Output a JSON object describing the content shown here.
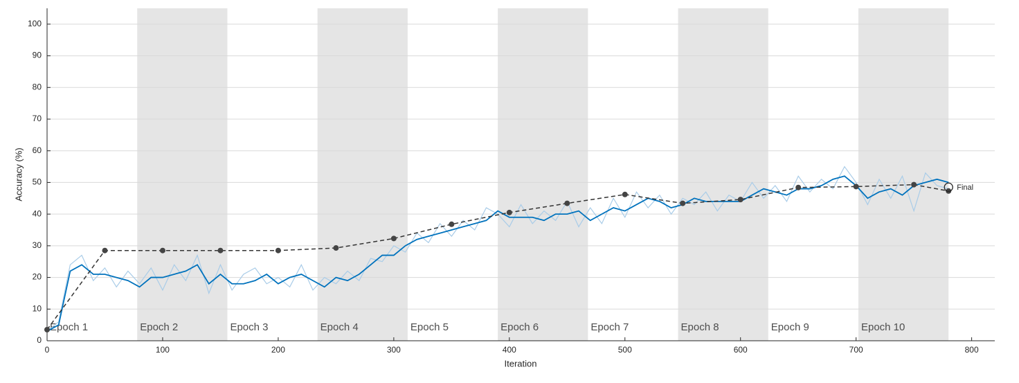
{
  "chart_data": {
    "type": "line",
    "xlabel": "Iteration",
    "ylabel": "Accuracy (%)",
    "xlim": [
      0,
      820
    ],
    "ylim": [
      0,
      105
    ],
    "xticks": [
      0,
      100,
      200,
      300,
      400,
      500,
      600,
      700,
      800
    ],
    "yticks": [
      0,
      10,
      20,
      30,
      40,
      50,
      60,
      70,
      80,
      90,
      100
    ],
    "grid": true,
    "epochs": [
      {
        "label": "Epoch 1",
        "start": 0,
        "end": 78
      },
      {
        "label": "Epoch 2",
        "start": 78,
        "end": 156
      },
      {
        "label": "Epoch 3",
        "start": 156,
        "end": 234
      },
      {
        "label": "Epoch 4",
        "start": 234,
        "end": 312
      },
      {
        "label": "Epoch 5",
        "start": 312,
        "end": 390
      },
      {
        "label": "Epoch 6",
        "start": 390,
        "end": 468
      },
      {
        "label": "Epoch 7",
        "start": 468,
        "end": 546
      },
      {
        "label": "Epoch 8",
        "start": 546,
        "end": 624
      },
      {
        "label": "Epoch 9",
        "start": 624,
        "end": 702
      },
      {
        "label": "Epoch 10",
        "start": 702,
        "end": 780
      }
    ],
    "series": [
      {
        "color": "#a9cce8",
        "x": [
          0,
          10,
          20,
          30,
          40,
          50,
          60,
          70,
          80,
          90,
          100,
          110,
          120,
          130,
          140,
          150,
          160,
          170,
          180,
          190,
          200,
          210,
          220,
          230,
          240,
          250,
          260,
          270,
          280,
          290,
          300,
          310,
          320,
          330,
          340,
          350,
          360,
          370,
          380,
          390,
          400,
          410,
          420,
          430,
          440,
          450,
          460,
          470,
          480,
          490,
          500,
          510,
          520,
          530,
          540,
          550,
          560,
          570,
          580,
          590,
          600,
          610,
          620,
          630,
          640,
          650,
          660,
          670,
          680,
          690,
          700,
          710,
          720,
          730,
          740,
          750,
          760,
          770,
          780
        ],
        "values": [
          3,
          6,
          24,
          27,
          19,
          23,
          17,
          22,
          18,
          23,
          16,
          24,
          19,
          27,
          15,
          24,
          16,
          21,
          23,
          18,
          20,
          17,
          24,
          16,
          20,
          18,
          22,
          19,
          26,
          25,
          30,
          28,
          34,
          31,
          37,
          33,
          38,
          35,
          42,
          40,
          36,
          43,
          37,
          41,
          38,
          44,
          36,
          42,
          37,
          45,
          39,
          47,
          42,
          46,
          40,
          45,
          43,
          47,
          41,
          46,
          44,
          50,
          45,
          49,
          44,
          52,
          47,
          51,
          48,
          55,
          50,
          43,
          51,
          45,
          52,
          41,
          53,
          49,
          48
        ]
      },
      {
        "color": "#0072bd",
        "x": [
          0,
          10,
          20,
          30,
          40,
          50,
          60,
          70,
          80,
          90,
          100,
          110,
          120,
          130,
          140,
          150,
          160,
          170,
          180,
          190,
          200,
          210,
          220,
          230,
          240,
          250,
          260,
          270,
          280,
          290,
          300,
          310,
          320,
          330,
          340,
          350,
          360,
          370,
          380,
          390,
          400,
          410,
          420,
          430,
          440,
          450,
          460,
          470,
          480,
          490,
          500,
          510,
          520,
          530,
          540,
          550,
          560,
          570,
          580,
          590,
          600,
          610,
          620,
          630,
          640,
          650,
          660,
          670,
          680,
          690,
          700,
          710,
          720,
          730,
          740,
          750,
          760,
          770,
          780
        ],
        "values": [
          3,
          5,
          22,
          24,
          21,
          21,
          20,
          19,
          17,
          20,
          20,
          21,
          22,
          24,
          18,
          21,
          18,
          18,
          19,
          21,
          18,
          20,
          21,
          19,
          17,
          20,
          19,
          21,
          24,
          27,
          27,
          30,
          32,
          33,
          34,
          35,
          36,
          37,
          38,
          41,
          39,
          39,
          39,
          38,
          40,
          40,
          41,
          38,
          40,
          42,
          41,
          43,
          45,
          44,
          42,
          43,
          45,
          44,
          44,
          44,
          44,
          46,
          48,
          47,
          46,
          48,
          48,
          49,
          51,
          52,
          49,
          45,
          47,
          48,
          46,
          49,
          50,
          51,
          50
        ]
      },
      {
        "color": "#333333",
        "x": [
          0,
          50,
          100,
          150,
          200,
          250,
          300,
          350,
          400,
          450,
          500,
          550,
          600,
          650,
          700,
          750,
          780
        ],
        "values": [
          3.5,
          28.5,
          28.5,
          28.5,
          28.5,
          29.3,
          32.3,
          36.8,
          40.5,
          43.4,
          46.2,
          43.4,
          44.6,
          48.4,
          48.7,
          49.3,
          47.3
        ]
      }
    ],
    "final": {
      "text": "Final",
      "x": 780,
      "y": 48.5
    }
  }
}
